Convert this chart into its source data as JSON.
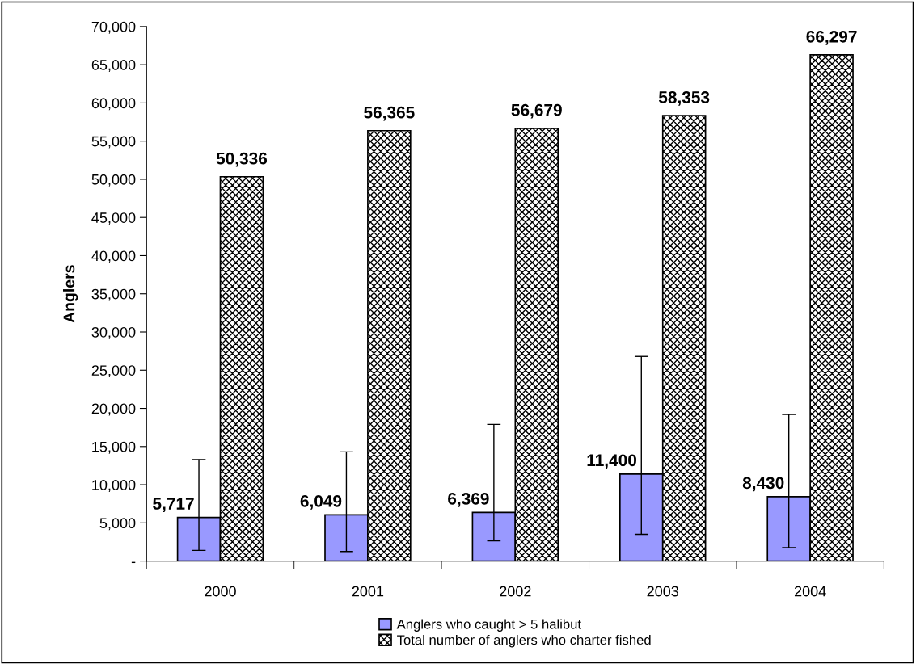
{
  "chart_data": {
    "type": "bar",
    "ylabel": "Anglers",
    "categories": [
      "2000",
      "2001",
      "2002",
      "2003",
      "2004"
    ],
    "series": [
      {
        "name": "Anglers who caught > 5 halibut",
        "color": "#9999ff",
        "values": [
          5717,
          6049,
          6369,
          11400,
          8430
        ],
        "value_labels": [
          "5,717",
          "6,049",
          "6,369",
          "11,400",
          "8,430"
        ],
        "errors": [
          [
            1400,
            13300
          ],
          [
            1250,
            14300
          ],
          [
            2650,
            17900
          ],
          [
            3500,
            26800
          ],
          [
            1750,
            19200
          ]
        ]
      },
      {
        "name": "Total number of anglers who charter fished",
        "color": "#000000",
        "values": [
          50336,
          56365,
          56679,
          58353,
          66297
        ],
        "value_labels": [
          "50,336",
          "56,365",
          "56,679",
          "58,353",
          "66,297"
        ]
      }
    ],
    "ylim": [
      0,
      70000
    ],
    "yticks": [
      {
        "value": 0,
        "label": "-"
      },
      {
        "value": 5000,
        "label": "5,000"
      },
      {
        "value": 10000,
        "label": "10,000"
      },
      {
        "value": 15000,
        "label": "15,000"
      },
      {
        "value": 20000,
        "label": "20,000"
      },
      {
        "value": 25000,
        "label": "25,000"
      },
      {
        "value": 30000,
        "label": "30,000"
      },
      {
        "value": 35000,
        "label": "35,000"
      },
      {
        "value": 40000,
        "label": "40,000"
      },
      {
        "value": 45000,
        "label": "45,000"
      },
      {
        "value": 50000,
        "label": "50,000"
      },
      {
        "value": 55000,
        "label": "55,000"
      },
      {
        "value": 60000,
        "label": "60,000"
      },
      {
        "value": 65000,
        "label": "65,000"
      },
      {
        "value": 70000,
        "label": "70,000"
      }
    ],
    "grid": false,
    "legend": "bottom"
  }
}
